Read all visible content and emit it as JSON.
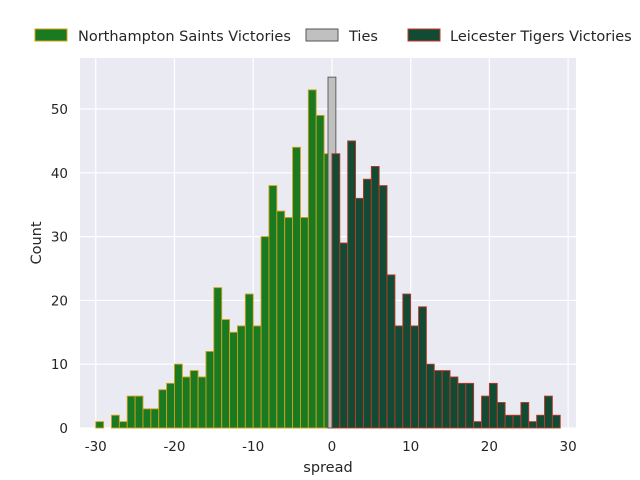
{
  "chart_data": {
    "type": "bar",
    "title": "",
    "xlabel": "spread",
    "ylabel": "Count",
    "xlim": [
      -32,
      31
    ],
    "ylim": [
      0,
      58
    ],
    "xticks": [
      -30,
      -20,
      -10,
      0,
      10,
      20,
      30
    ],
    "yticks": [
      0,
      10,
      20,
      30,
      40,
      50
    ],
    "grid": true,
    "legend_position": "top",
    "background": "#eaeaf2",
    "series": [
      {
        "name": "Northampton Saints Victories",
        "fill": "#1a7a21",
        "edge": "#d4a017",
        "bins": [
          {
            "x": -29.5,
            "count": 1
          },
          {
            "x": -28.5,
            "count": 0
          },
          {
            "x": -27.5,
            "count": 2
          },
          {
            "x": -26.5,
            "count": 1
          },
          {
            "x": -25.5,
            "count": 5
          },
          {
            "x": -24.5,
            "count": 5
          },
          {
            "x": -23.5,
            "count": 3
          },
          {
            "x": -22.5,
            "count": 3
          },
          {
            "x": -21.5,
            "count": 6
          },
          {
            "x": -20.5,
            "count": 7
          },
          {
            "x": -19.5,
            "count": 10
          },
          {
            "x": -18.5,
            "count": 8
          },
          {
            "x": -17.5,
            "count": 9
          },
          {
            "x": -16.5,
            "count": 8
          },
          {
            "x": -15.5,
            "count": 12
          },
          {
            "x": -14.5,
            "count": 22
          },
          {
            "x": -13.5,
            "count": 17
          },
          {
            "x": -12.5,
            "count": 15
          },
          {
            "x": -11.5,
            "count": 16
          },
          {
            "x": -10.5,
            "count": 21
          },
          {
            "x": -9.5,
            "count": 16
          },
          {
            "x": -8.5,
            "count": 30
          },
          {
            "x": -7.5,
            "count": 38
          },
          {
            "x": -6.5,
            "count": 34
          },
          {
            "x": -5.5,
            "count": 33
          },
          {
            "x": -4.5,
            "count": 44
          },
          {
            "x": -3.5,
            "count": 33
          },
          {
            "x": -2.5,
            "count": 53
          },
          {
            "x": -1.5,
            "count": 49
          },
          {
            "x": -0.5,
            "count": 43
          }
        ]
      },
      {
        "name": "Ties",
        "fill": "#c0c0c0",
        "edge": "#555555",
        "bins": [
          {
            "x": 0,
            "count": 55
          }
        ]
      },
      {
        "name": "Leicester Tigers Victories",
        "fill": "#134a33",
        "edge": "#c0392b",
        "bins": [
          {
            "x": 0.5,
            "count": 43
          },
          {
            "x": 1.5,
            "count": 29
          },
          {
            "x": 2.5,
            "count": 45
          },
          {
            "x": 3.5,
            "count": 36
          },
          {
            "x": 4.5,
            "count": 39
          },
          {
            "x": 5.5,
            "count": 41
          },
          {
            "x": 6.5,
            "count": 38
          },
          {
            "x": 7.5,
            "count": 24
          },
          {
            "x": 8.5,
            "count": 16
          },
          {
            "x": 9.5,
            "count": 21
          },
          {
            "x": 10.5,
            "count": 16
          },
          {
            "x": 11.5,
            "count": 19
          },
          {
            "x": 12.5,
            "count": 10
          },
          {
            "x": 13.5,
            "count": 9
          },
          {
            "x": 14.5,
            "count": 9
          },
          {
            "x": 15.5,
            "count": 8
          },
          {
            "x": 16.5,
            "count": 7
          },
          {
            "x": 17.5,
            "count": 7
          },
          {
            "x": 18.5,
            "count": 1
          },
          {
            "x": 19.5,
            "count": 5
          },
          {
            "x": 20.5,
            "count": 7
          },
          {
            "x": 21.5,
            "count": 4
          },
          {
            "x": 22.5,
            "count": 2
          },
          {
            "x": 23.5,
            "count": 2
          },
          {
            "x": 24.5,
            "count": 4
          },
          {
            "x": 25.5,
            "count": 1
          },
          {
            "x": 26.5,
            "count": 2
          },
          {
            "x": 27.5,
            "count": 5
          },
          {
            "x": 28.5,
            "count": 2
          }
        ]
      }
    ]
  }
}
